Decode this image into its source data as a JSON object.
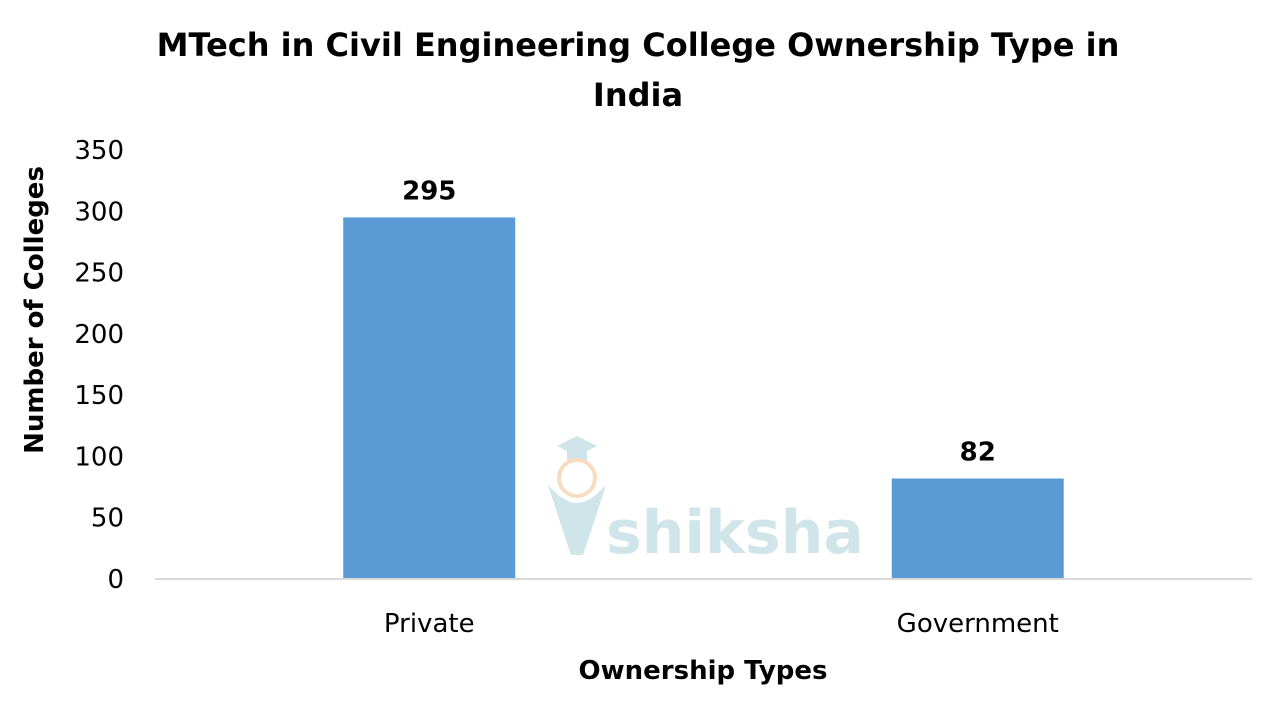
{
  "chart_data": {
    "type": "bar",
    "title": "MTech in Civil Engineering College Ownership Type in India",
    "title_lines": [
      "MTech in Civil Engineering College Ownership Type in",
      "India"
    ],
    "xlabel": "Ownership Types",
    "ylabel": "Number of Colleges",
    "categories": [
      "Private",
      "Government"
    ],
    "values": [
      295,
      82
    ],
    "data_labels": [
      "295",
      "82"
    ],
    "ylim": [
      0,
      350
    ],
    "yticks": [
      0,
      50,
      100,
      150,
      200,
      250,
      300,
      350
    ],
    "grid": false,
    "legend": "none",
    "bar_color": "#5b9bd5",
    "axis_line_color": "#d9d9d9"
  },
  "watermark": {
    "text": "shiksha",
    "icon": "graduation-cap-logo-icon",
    "color": "#cfe5ea"
  }
}
